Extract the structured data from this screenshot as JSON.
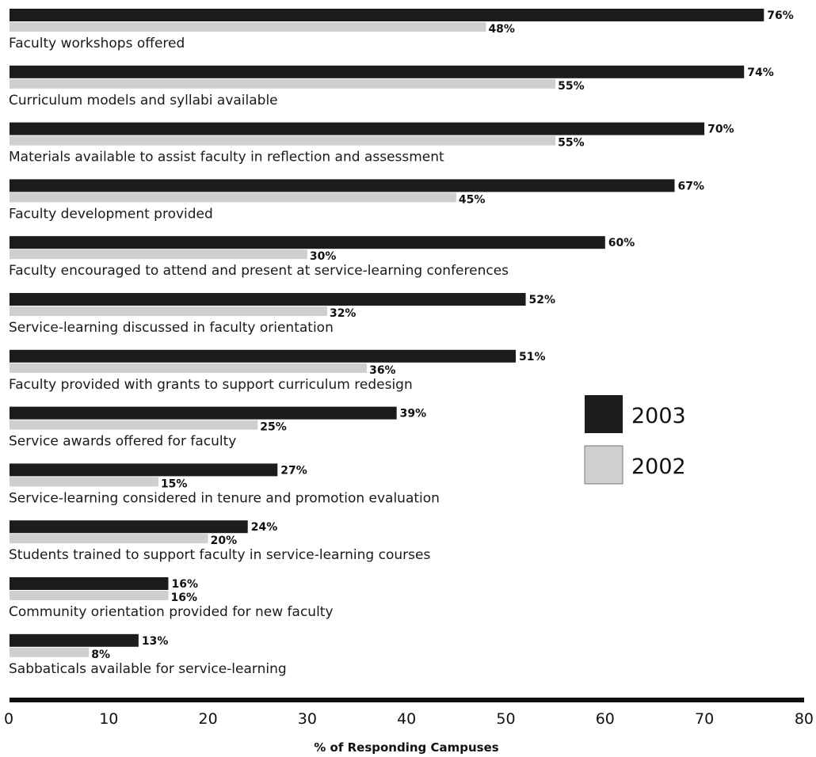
{
  "chart_data": {
    "type": "bar",
    "orientation": "horizontal",
    "categories": [
      "Faculty workshops offered",
      "Curriculum models and syllabi available",
      "Materials available to assist faculty in reflection and assessment",
      "Faculty development provided",
      "Faculty encouraged to attend and present at service-learning conferences",
      "Service-learning discussed in faculty orientation",
      "Faculty provided with grants to support curriculum redesign",
      "Service awards offered for faculty",
      "Service-learning considered in tenure and promotion evaluation",
      "Students trained to support faculty in service-learning courses",
      "Community orientation provided for new faculty",
      "Sabbaticals available for service-learning"
    ],
    "series": [
      {
        "name": "2003",
        "color": "#1c1c1c",
        "values": [
          76,
          74,
          70,
          67,
          60,
          52,
          51,
          39,
          27,
          24,
          16,
          13
        ],
        "labels": [
          "76%",
          "74%",
          "70%",
          "67%",
          "60%",
          "52%",
          "51%",
          "39%",
          "27%",
          "24%",
          "16%",
          "13%"
        ]
      },
      {
        "name": "2002",
        "color": "#cfcfcf",
        "values": [
          48,
          55,
          55,
          45,
          30,
          32,
          36,
          25,
          15,
          20,
          16,
          8
        ],
        "labels": [
          "48%",
          "55%",
          "55%",
          "45%",
          "30%",
          "32%",
          "36%",
          "25%",
          "15%",
          "20%",
          "16%",
          "8%"
        ]
      }
    ],
    "xlabel": "% of Responding Campuses",
    "xlim": [
      0,
      80
    ],
    "xticks": [
      "0",
      "10",
      "20",
      "30",
      "40",
      "50",
      "60",
      "70",
      "80"
    ],
    "grid": false,
    "legend_position": "right-middle"
  }
}
